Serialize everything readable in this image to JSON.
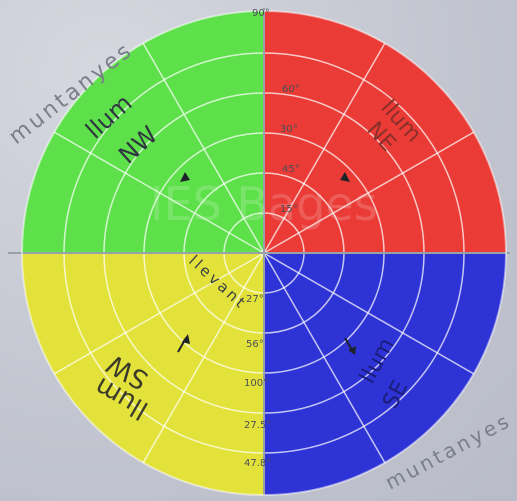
{
  "outer_text": {
    "top_left": "muntanyes",
    "bottom_right": "muntanyes"
  },
  "quadrants": {
    "nw": {
      "line1": "llum",
      "line2": "NW",
      "color": "#5de04a"
    },
    "ne": {
      "line1": "llum",
      "line2": "NE",
      "color": "#ea3b36"
    },
    "sw": {
      "line1": "llum",
      "line2": "SW",
      "color": "#e3e23a"
    },
    "se": {
      "line1": "llum",
      "line2": "SE",
      "color": "#2e33d6"
    }
  },
  "center_text": "llevant",
  "scale_labels": [
    "90°",
    "60°",
    "30°",
    "45°",
    "15°",
    "27°",
    "56°",
    "100°",
    "27.5°",
    "47.8°"
  ],
  "watermark": "IES Bages"
}
